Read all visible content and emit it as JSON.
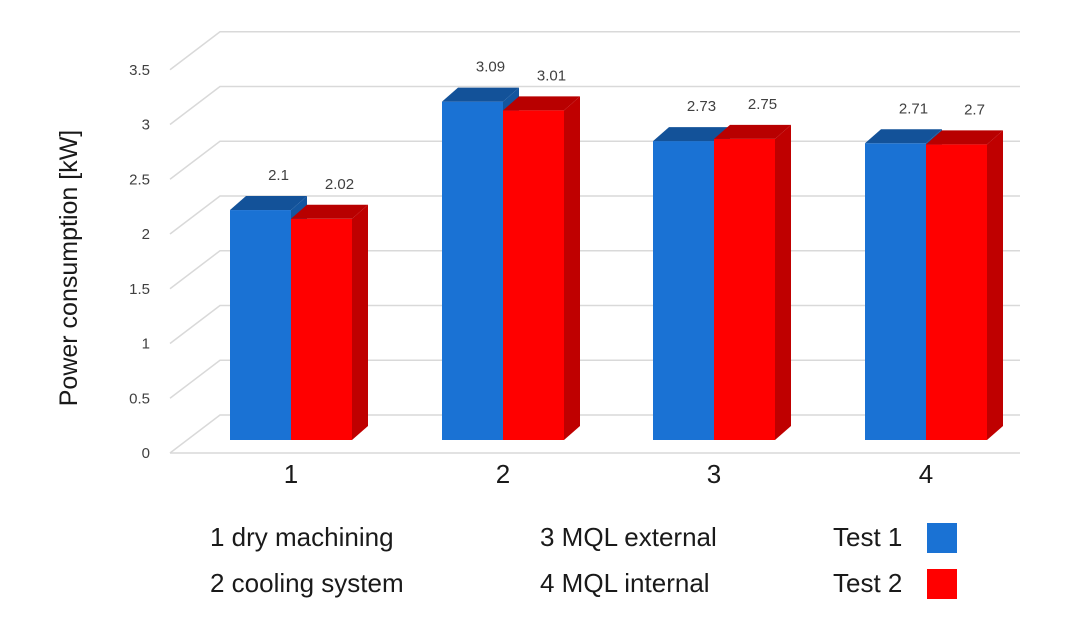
{
  "chart_data": {
    "type": "bar",
    "three_d": true,
    "ylabel": "Power consumption [kW]",
    "xlabel": "",
    "categories": [
      "1",
      "2",
      "3",
      "4"
    ],
    "ylim": [
      0,
      3.5
    ],
    "yticks": [
      "0",
      "0.5",
      "1",
      "1.5",
      "2",
      "2.5",
      "3",
      "3.5"
    ],
    "grid": true,
    "series": [
      {
        "name": "Test 1",
        "values": [
          2.1,
          3.09,
          2.73,
          2.71
        ],
        "labels": [
          "2.1",
          "3.09",
          "2.73",
          "2.71"
        ],
        "color": "#1a72d4"
      },
      {
        "name": "Test 2",
        "values": [
          2.02,
          3.01,
          2.75,
          2.7
        ],
        "labels": [
          "2.02",
          "3.01",
          "2.75",
          "2.7"
        ],
        "color": "#ff0000"
      }
    ]
  },
  "legend": {
    "categories": [
      "1 dry machining",
      "2 cooling system",
      "3 MQL external",
      "4 MQL internal"
    ],
    "series": [
      "Test 1",
      "Test 2"
    ]
  }
}
